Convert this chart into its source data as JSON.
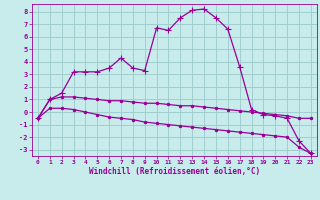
{
  "xlabel": "Windchill (Refroidissement éolien,°C)",
  "background_color": "#c8ecec",
  "grid_color": "#a0cece",
  "line_color": "#990099",
  "spine_color": "#990099",
  "xlim": [
    -0.5,
    23.5
  ],
  "ylim": [
    -3.5,
    8.6
  ],
  "xticks": [
    0,
    1,
    2,
    3,
    4,
    5,
    6,
    7,
    8,
    9,
    10,
    11,
    12,
    13,
    14,
    15,
    16,
    17,
    18,
    19,
    20,
    21,
    22,
    23
  ],
  "yticks": [
    -3,
    -2,
    -1,
    0,
    1,
    2,
    3,
    4,
    5,
    6,
    7,
    8
  ],
  "series1_x": [
    0,
    1,
    2,
    3,
    4,
    5,
    6,
    7,
    8,
    9,
    10,
    11,
    12,
    13,
    14,
    15,
    16,
    17,
    18,
    19,
    20,
    21,
    22,
    23
  ],
  "series1_y": [
    -0.5,
    1.0,
    1.5,
    3.2,
    3.2,
    3.2,
    3.5,
    4.3,
    3.5,
    3.3,
    6.7,
    6.5,
    7.5,
    8.1,
    8.2,
    7.5,
    6.6,
    3.6,
    0.2,
    -0.2,
    -0.3,
    -0.5,
    -2.3,
    -3.3
  ],
  "series2_x": [
    0,
    1,
    2,
    3,
    4,
    5,
    6,
    7,
    8,
    9,
    10,
    11,
    12,
    13,
    14,
    15,
    16,
    17,
    18,
    19,
    20,
    21,
    22,
    23
  ],
  "series2_y": [
    -0.5,
    1.0,
    1.2,
    1.2,
    1.1,
    1.0,
    0.9,
    0.9,
    0.8,
    0.7,
    0.7,
    0.6,
    0.5,
    0.5,
    0.4,
    0.3,
    0.2,
    0.1,
    0.0,
    -0.1,
    -0.2,
    -0.3,
    -0.5,
    -0.5
  ],
  "series3_x": [
    0,
    1,
    2,
    3,
    4,
    5,
    6,
    7,
    8,
    9,
    10,
    11,
    12,
    13,
    14,
    15,
    16,
    17,
    18,
    19,
    20,
    21,
    22,
    23
  ],
  "series3_y": [
    -0.5,
    0.3,
    0.3,
    0.2,
    0.0,
    -0.2,
    -0.4,
    -0.5,
    -0.6,
    -0.8,
    -0.9,
    -1.0,
    -1.1,
    -1.2,
    -1.3,
    -1.4,
    -1.5,
    -1.6,
    -1.7,
    -1.8,
    -1.9,
    -2.0,
    -2.8,
    -3.3
  ]
}
